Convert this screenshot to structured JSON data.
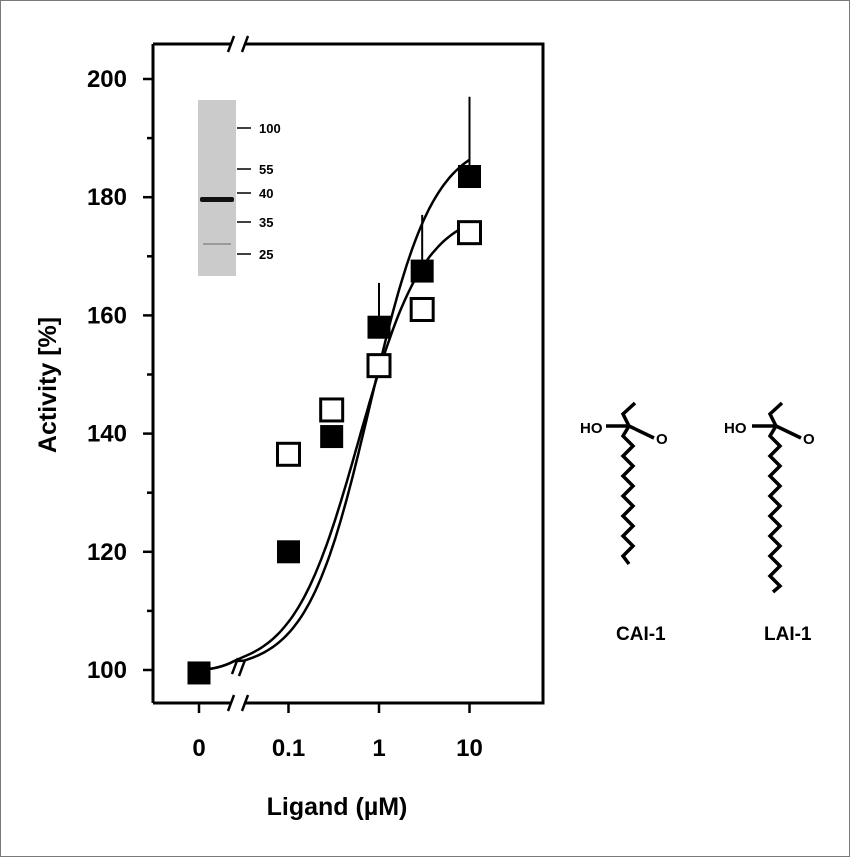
{
  "chart_data": {
    "type": "scatter",
    "xlabel": "Ligand (µM)",
    "ylabel": "Activity [%]",
    "x_scale": "log with axis break between 0 and 0.1",
    "ylim": [
      95,
      205
    ],
    "xtick_labels": [
      "0",
      "0.1",
      "1",
      "10"
    ],
    "ytick_labels": [
      "100",
      "120",
      "140",
      "160",
      "180",
      "200"
    ],
    "x": [
      0,
      0.1,
      0.3,
      1,
      3,
      10
    ],
    "grid": false,
    "series": [
      {
        "marker": "filled-square",
        "points": [
          {
            "x": 0,
            "y": 99.5
          },
          {
            "x": 0.1,
            "y": 120
          },
          {
            "x": 0.3,
            "y": 139.5
          },
          {
            "x": 1,
            "y": 158
          },
          {
            "x": 3,
            "y": 167.5
          },
          {
            "x": 10,
            "y": 183.5
          }
        ],
        "error_upper": [
          0,
          0,
          0,
          7.5,
          9.5,
          13.5
        ]
      },
      {
        "marker": "open-square",
        "points": [
          {
            "x": 0.1,
            "y": 136.5
          },
          {
            "x": 0.3,
            "y": 144
          },
          {
            "x": 1,
            "y": 151.5
          },
          {
            "x": 3,
            "y": 161
          },
          {
            "x": 10,
            "y": 174
          }
        ]
      }
    ],
    "inset_gel": {
      "marker_labels": [
        "100",
        "55",
        "40",
        "35",
        "25"
      ]
    },
    "molecules": [
      {
        "label": "CAI-1",
        "hydroxyl": "HO",
        "carbonyl": "O"
      },
      {
        "label": "LAI-1",
        "hydroxyl": "HO",
        "carbonyl": "O"
      }
    ],
    "colors": {
      "ink": "#000000",
      "gel_background": "#cbcbcb",
      "frame": "#7a7a7a"
    }
  }
}
